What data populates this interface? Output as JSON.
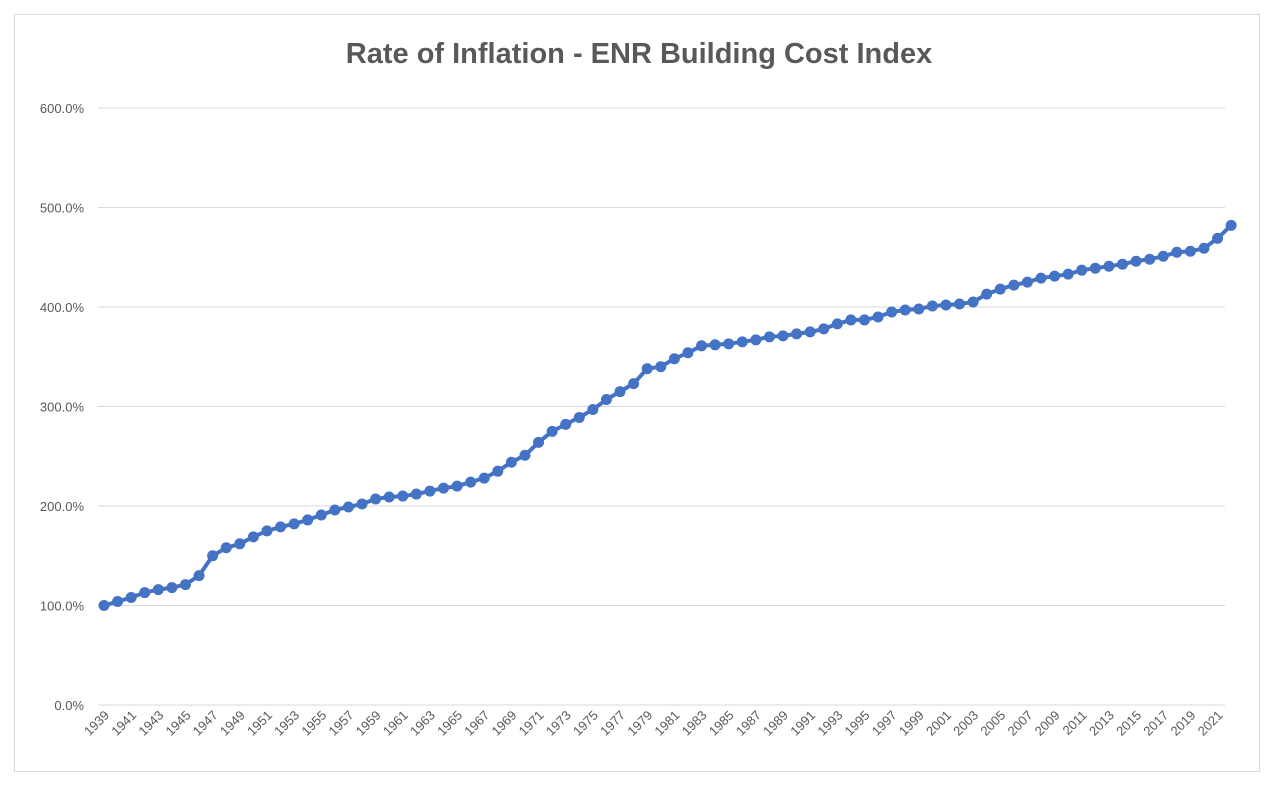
{
  "chart_data": {
    "type": "line",
    "title": "Rate of Inflation - ENR Building Cost Index",
    "xlabel": "",
    "ylabel": "",
    "ylim": [
      0,
      600
    ],
    "y_ticks": [
      0,
      100,
      200,
      300,
      400,
      500,
      600
    ],
    "y_tick_labels": [
      "0.0%",
      "100.0%",
      "200.0%",
      "300.0%",
      "400.0%",
      "500.0%",
      "600.0%"
    ],
    "x_tick_labels": [
      "1939",
      "1941",
      "1943",
      "1945",
      "1947",
      "1949",
      "1951",
      "1953",
      "1955",
      "1957",
      "1959",
      "1961",
      "1963",
      "1965",
      "1967",
      "1969",
      "1971",
      "1973",
      "1975",
      "1977",
      "1979",
      "1981",
      "1983",
      "1985",
      "1987",
      "1989",
      "1991",
      "1993",
      "1995",
      "1997",
      "1999",
      "2001",
      "2003",
      "2005",
      "2007",
      "2009",
      "2011",
      "2013",
      "2015",
      "2017",
      "2019",
      "2021"
    ],
    "grid": true,
    "legend": "none",
    "colors": {
      "line": "#4472c4",
      "grid": "#d9d9d9",
      "text": "#595959"
    },
    "x": [
      1939,
      1940,
      1941,
      1942,
      1943,
      1944,
      1945,
      1946,
      1947,
      1948,
      1949,
      1950,
      1951,
      1952,
      1953,
      1954,
      1955,
      1956,
      1957,
      1958,
      1959,
      1960,
      1961,
      1962,
      1963,
      1964,
      1965,
      1966,
      1967,
      1968,
      1969,
      1970,
      1971,
      1972,
      1973,
      1974,
      1975,
      1976,
      1977,
      1978,
      1979,
      1980,
      1981,
      1982,
      1983,
      1984,
      1985,
      1986,
      1987,
      1988,
      1989,
      1990,
      1991,
      1992,
      1993,
      1994,
      1995,
      1996,
      1997,
      1998,
      1999,
      2000,
      2001,
      2002,
      2003,
      2004,
      2005,
      2006,
      2007,
      2008,
      2009,
      2010,
      2011,
      2012,
      2013,
      2014,
      2015,
      2016,
      2017,
      2018,
      2019,
      2020,
      2021,
      2022
    ],
    "series": [
      {
        "values": [
          100,
          104,
          108,
          113,
          116,
          118,
          121,
          130,
          150,
          158,
          162,
          169,
          175,
          179,
          182,
          186,
          191,
          196,
          199,
          202,
          207,
          209,
          210,
          212,
          215,
          218,
          220,
          224,
          228,
          235,
          244,
          251,
          264,
          275,
          282,
          289,
          297,
          307,
          315,
          323,
          338,
          340,
          348,
          354,
          361,
          362,
          363,
          365,
          367,
          370,
          371,
          373,
          375,
          378,
          383,
          387,
          387,
          390,
          395,
          397,
          398,
          401,
          402,
          403,
          405,
          413,
          418,
          422,
          425,
          429,
          431,
          433,
          437,
          439,
          441,
          443,
          446,
          448,
          451,
          455,
          456,
          459,
          469,
          482
        ]
      }
    ]
  }
}
